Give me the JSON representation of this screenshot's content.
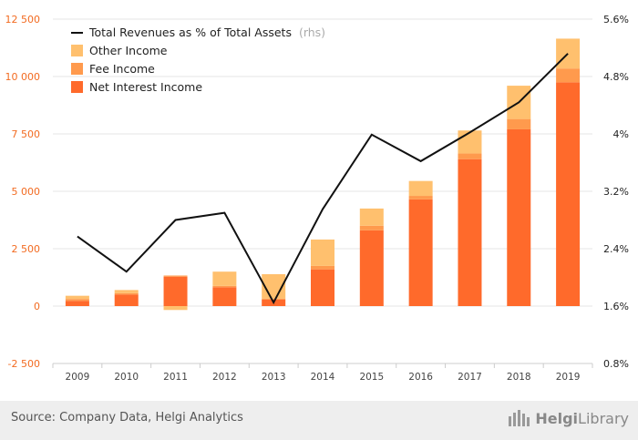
{
  "chart_data": {
    "type": "bar",
    "categories": [
      "2009",
      "2010",
      "2011",
      "2012",
      "2013",
      "2014",
      "2015",
      "2016",
      "2017",
      "2018",
      "2019"
    ],
    "series": [
      {
        "name": "Net Interest Income",
        "values": [
          230,
          500,
          1280,
          820,
          280,
          1600,
          3300,
          4650,
          6400,
          7700,
          9750
        ],
        "color": "#ff6a2b"
      },
      {
        "name": "Fee Income",
        "values": [
          80,
          60,
          50,
          60,
          50,
          150,
          200,
          150,
          250,
          450,
          600
        ],
        "color": "#ff9a4d"
      },
      {
        "name": "Other Income",
        "values": [
          140,
          140,
          -170,
          620,
          1060,
          1150,
          750,
          650,
          1000,
          1450,
          1300
        ],
        "color": "#ffc06e"
      }
    ],
    "line": {
      "name": "Total Revenues as % of Total Assets",
      "name_suffix": "(rhs)",
      "values": [
        2.57,
        2.08,
        2.8,
        2.9,
        1.65,
        2.95,
        3.99,
        3.62,
        4.02,
        4.44,
        5.12
      ],
      "color": "#111111",
      "axis": "right"
    },
    "y_left": {
      "ticks": [
        -2500,
        0,
        2500,
        5000,
        7500,
        10000,
        12500
      ],
      "tick_labels": [
        "-2 500",
        "0",
        "2 500",
        "5 000",
        "7 500",
        "10 000",
        "12 500"
      ],
      "range": [
        -2500,
        12500
      ]
    },
    "y_right": {
      "ticks": [
        0.8,
        1.6,
        2.4,
        3.2,
        4.0,
        4.8,
        5.6
      ],
      "tick_labels": [
        "0.8%",
        "1.6%",
        "2.4%",
        "3.2%",
        "4%",
        "4.8%",
        "5.6%"
      ],
      "range": [
        0.8,
        5.6
      ]
    },
    "grid": true,
    "legend_position": "top-left"
  },
  "footer": {
    "source": "Source: Company Data, Helgi Analytics",
    "logo_word1": "Helgi",
    "logo_word2": "Library"
  }
}
